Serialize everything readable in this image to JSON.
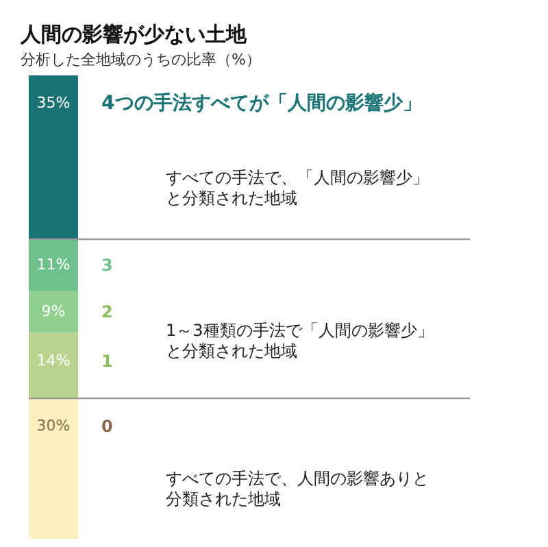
{
  "chart_data": {
    "type": "bar",
    "stacked": true,
    "title": "人間の影響が少ない土地",
    "subtitle": "分析した全地域のうちの比率（%）",
    "categories": [
      null
    ],
    "ylim": [
      0,
      99
    ],
    "tick_labels": false,
    "series": [
      {
        "name": "0",
        "color": "#fdf0c0",
        "values": [
          30
        ],
        "value_labels": [
          "30%"
        ]
      },
      {
        "name": "1",
        "color": "#b9d38f",
        "values": [
          14
        ],
        "value_labels": [
          "14%"
        ]
      },
      {
        "name": "2",
        "color": "#8fd08f",
        "values": [
          9
        ],
        "value_labels": [
          "9%"
        ]
      },
      {
        "name": "3",
        "color": "#6dc28b",
        "values": [
          11
        ],
        "value_labels": [
          "11%"
        ]
      },
      {
        "name": "4つの手法すべてが「人間の影響少」",
        "color": "#1a7476",
        "values": [
          35
        ],
        "value_labels": [
          "35%"
        ]
      }
    ],
    "ref_lines": [
      {
        "axis": "y",
        "value": 64,
        "color": "#999999"
      },
      {
        "axis": "y",
        "value": 30,
        "color": "#999999"
      }
    ],
    "annotations": [
      "すべての手法で、「人間の影響少」と分類された地域",
      "1～3種類の手法で「人間の影響少」と分類された地域",
      "すべての手法で、人間の影響ありと分類された地域"
    ]
  }
}
